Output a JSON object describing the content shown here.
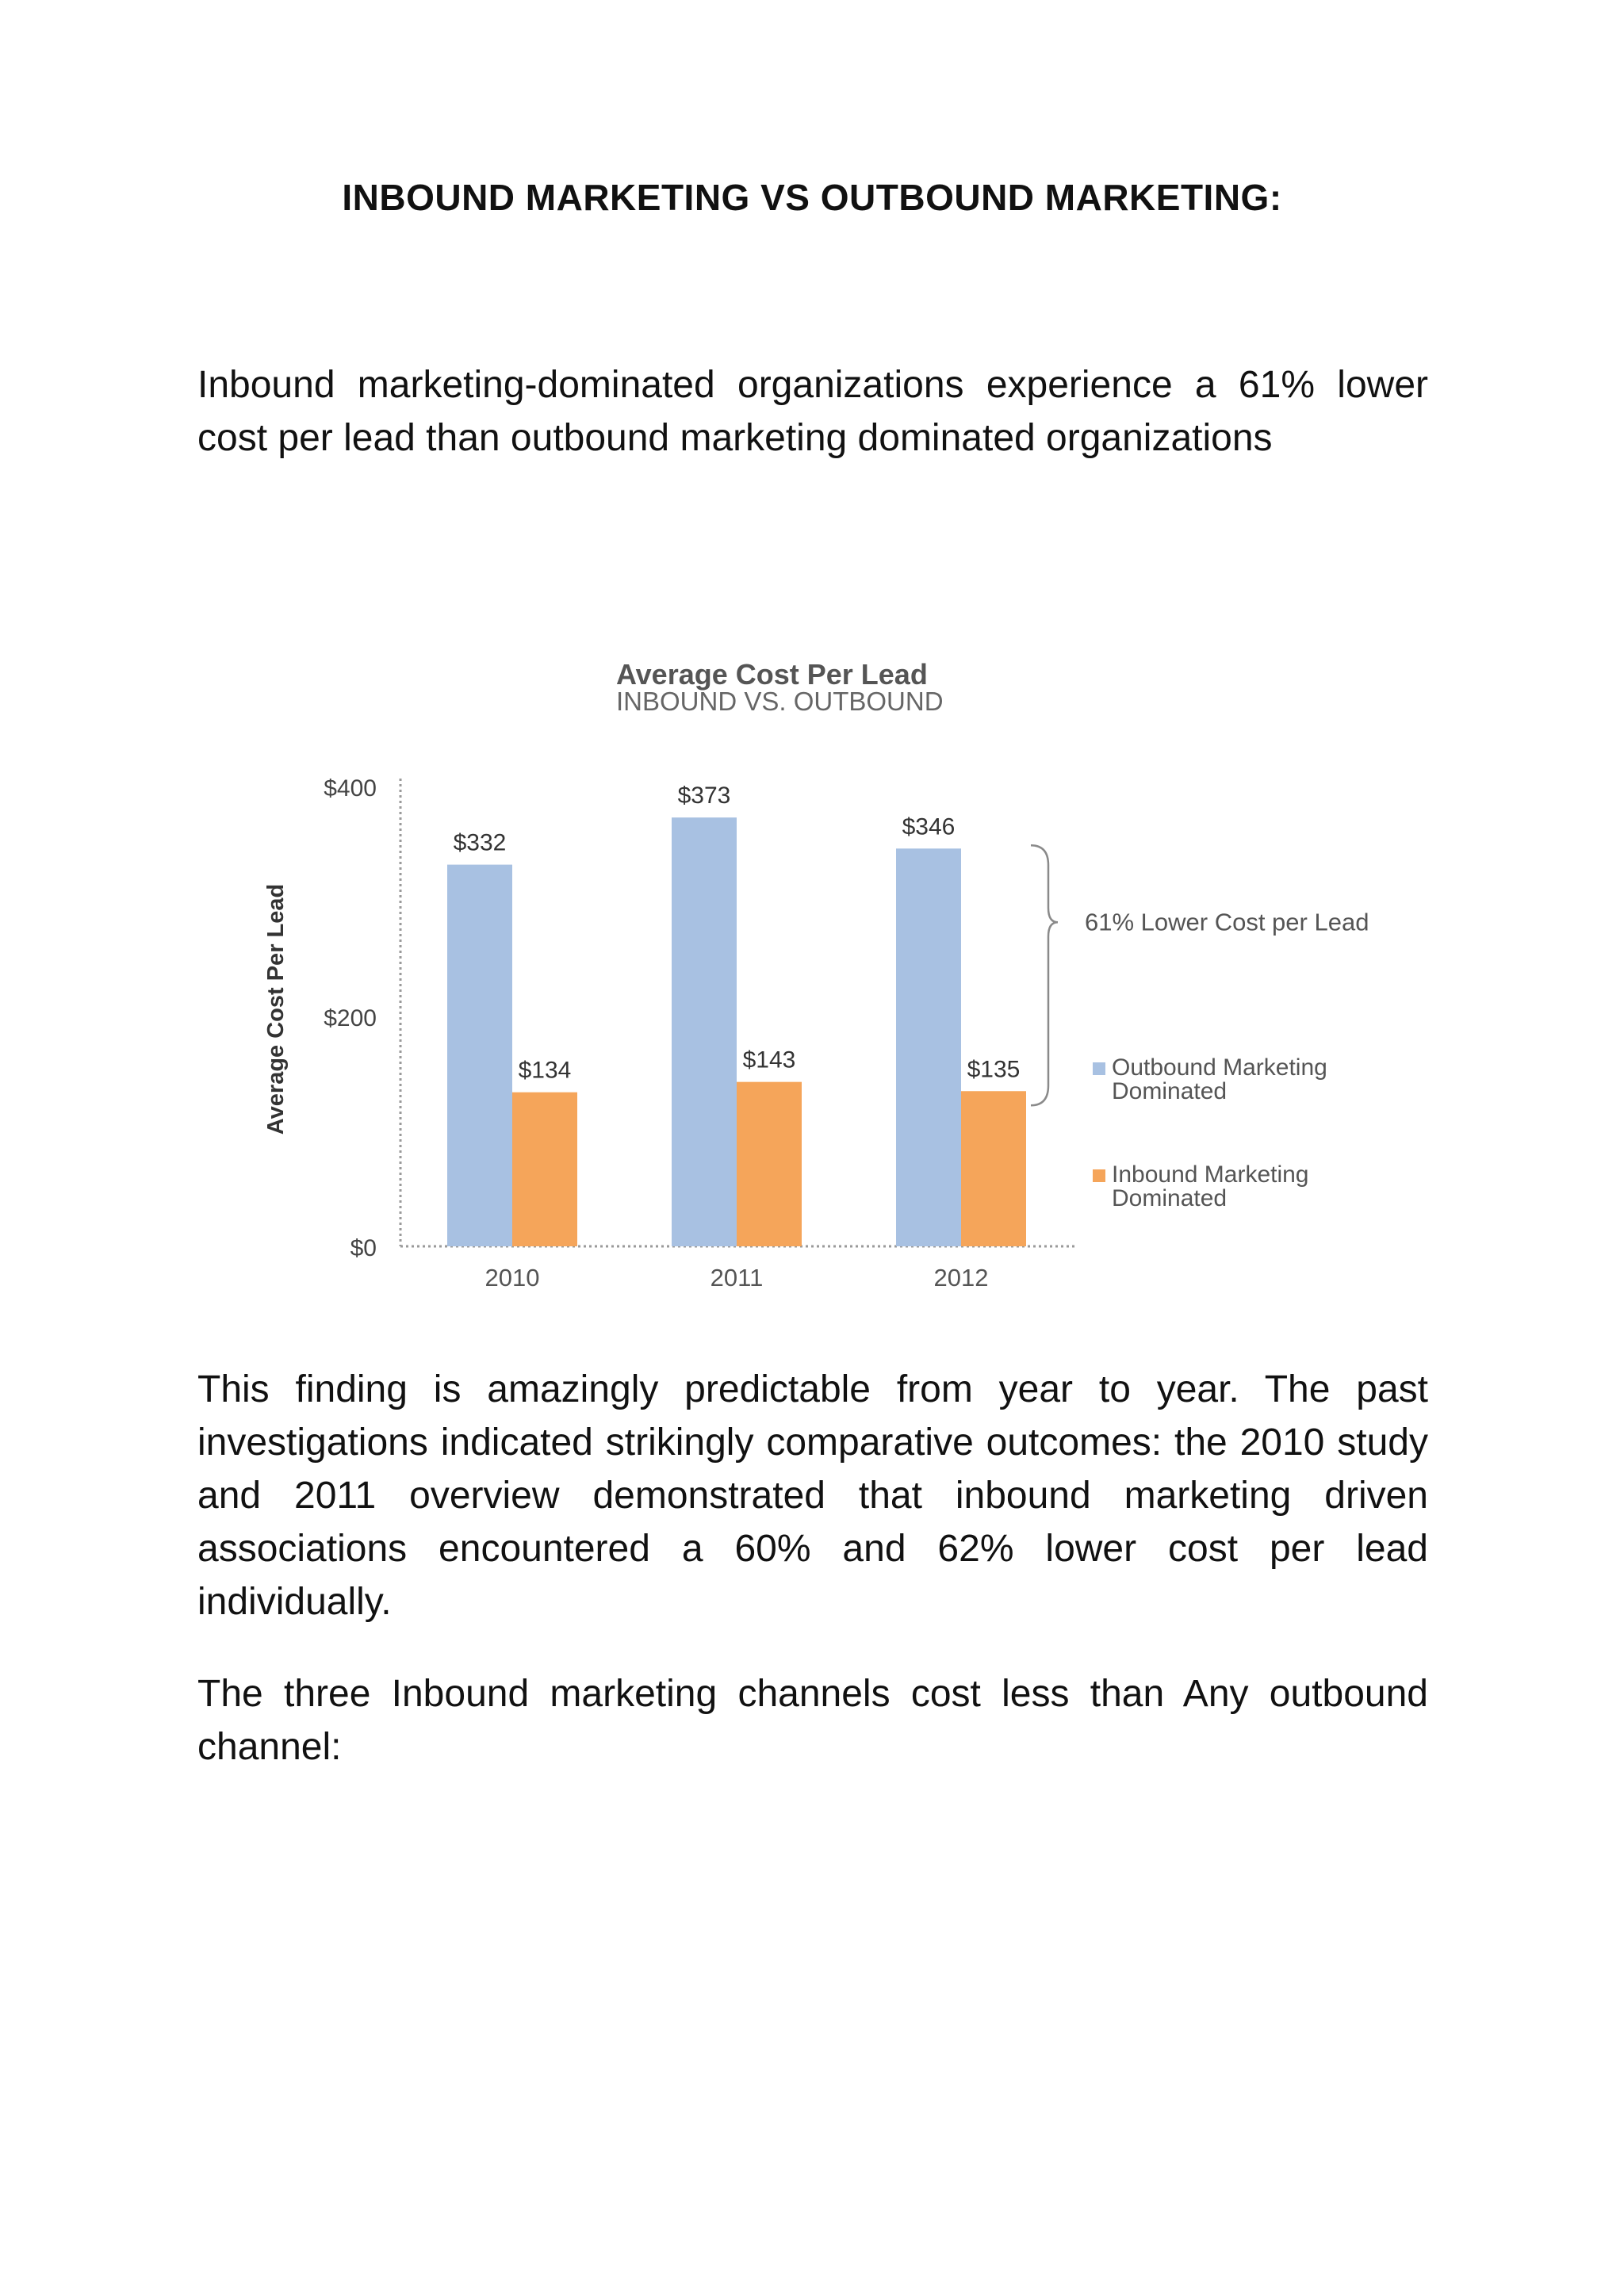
{
  "document": {
    "title": "INBOUND MARKETING VS OUTBOUND MARKETING:",
    "intro": "Inbound marketing-dominated organizations experience a 61% lower cost per lead than outbound marketing dominated organizations",
    "finding": "This finding is amazingly predictable from year to year. The past investigations indicated strikingly comparative outcomes: the 2010 study and 2011 overview demonstrated that inbound marketing driven associations encountered a 60% and 62% lower cost per lead individually.",
    "channels": "The three Inbound marketing channels cost less than Any outbound channel:"
  },
  "chart_data": {
    "type": "bar",
    "title": "Average Cost Per Lead",
    "subtitle": "INBOUND VS. OUTBOUND",
    "ylabel": "Average Cost Per Lead",
    "xlabel": "",
    "categories": [
      "2010",
      "2011",
      "2012"
    ],
    "series": [
      {
        "name": "Outbound Marketing Dominated",
        "legend_lines": [
          "Outbound Marketing",
          "Dominated"
        ],
        "values": [
          332,
          373,
          346
        ],
        "labels": [
          "$332",
          "$373",
          "$346"
        ],
        "color": "#a8c1e2"
      },
      {
        "name": "Inbound Marketing Dominated",
        "legend_lines": [
          "Inbound Marketing",
          "Dominated"
        ],
        "values": [
          134,
          143,
          135
        ],
        "labels": [
          "$134",
          "$143",
          "$135"
        ],
        "color": "#f5a55a"
      }
    ],
    "ylim": [
      0,
      400
    ],
    "yticks": [
      0,
      200,
      400
    ],
    "ytick_labels": [
      "$0",
      "$200",
      "$400"
    ],
    "annotation": "61% Lower Cost per Lead",
    "grid": false,
    "legend_position": "right"
  }
}
